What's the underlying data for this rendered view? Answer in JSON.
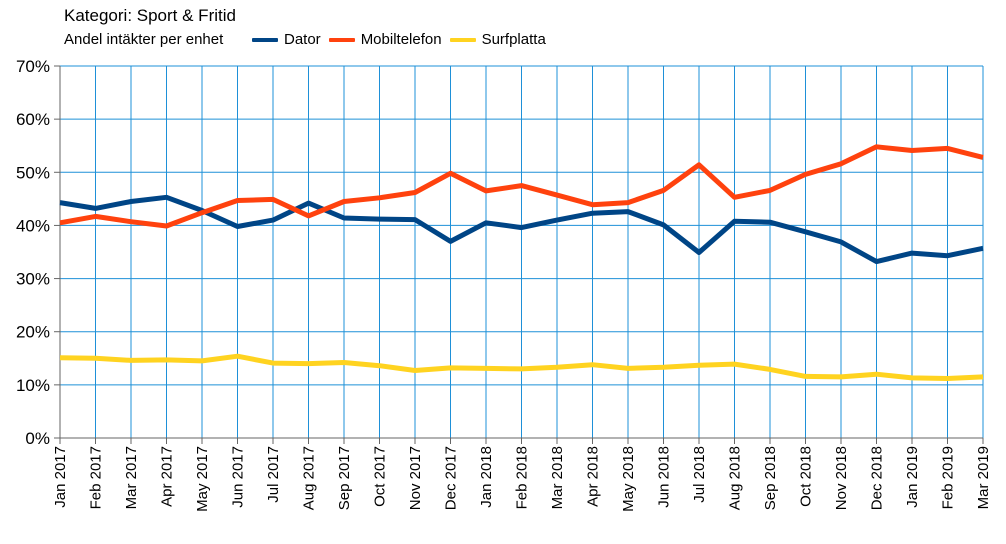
{
  "chart_data": {
    "type": "line",
    "title": "Kategori: Sport & Fritid",
    "subtitle": "Andel intäkter per enhet",
    "categories": [
      "Jan 2017",
      "Feb 2017",
      "Mar 2017",
      "Apr 2017",
      "May 2017",
      "Jun 2017",
      "Jul 2017",
      "Aug 2017",
      "Sep 2017",
      "Oct 2017",
      "Nov 2017",
      "Dec 2017",
      "Jan 2018",
      "Feb 2018",
      "Mar 2018",
      "Apr 2018",
      "May 2018",
      "Jun 2018",
      "Jul 2018",
      "Aug 2018",
      "Sep 2018",
      "Oct 2018",
      "Nov 2018",
      "Dec 2018",
      "Jan 2019",
      "Feb 2019",
      "Mar 2019"
    ],
    "series": [
      {
        "name": "Dator",
        "color": "#004586",
        "values": [
          44.3,
          43.2,
          44.5,
          45.3,
          42.8,
          39.8,
          41.0,
          44.2,
          41.4,
          41.2,
          41.1,
          37.0,
          40.5,
          39.6,
          41.0,
          42.3,
          42.6,
          40.1,
          34.9,
          40.8,
          40.6,
          38.8,
          36.9,
          33.2,
          34.8,
          34.3,
          35.7
        ]
      },
      {
        "name": "Mobiltelefon",
        "color": "#ff420e",
        "values": [
          40.5,
          41.7,
          40.7,
          39.9,
          42.4,
          44.7,
          44.9,
          41.8,
          44.5,
          45.2,
          46.2,
          49.8,
          46.5,
          47.5,
          45.7,
          43.9,
          44.3,
          46.6,
          51.4,
          45.3,
          46.6,
          49.6,
          51.6,
          54.8,
          54.1,
          54.5,
          52.8
        ]
      },
      {
        "name": "Surfplatta",
        "color": "#ffd320",
        "values": [
          15.1,
          15.0,
          14.6,
          14.7,
          14.5,
          15.4,
          14.1,
          14.0,
          14.2,
          13.6,
          12.7,
          13.2,
          13.1,
          13.0,
          13.3,
          13.8,
          13.1,
          13.3,
          13.7,
          13.9,
          12.9,
          11.6,
          11.5,
          12.0,
          11.3,
          11.2,
          11.5
        ]
      }
    ],
    "ylim": [
      0,
      70
    ],
    "yticks": [
      "0%",
      "10%",
      "20%",
      "30%",
      "40%",
      "50%",
      "60%",
      "70%"
    ],
    "grid": true,
    "legend_placement": "top"
  }
}
